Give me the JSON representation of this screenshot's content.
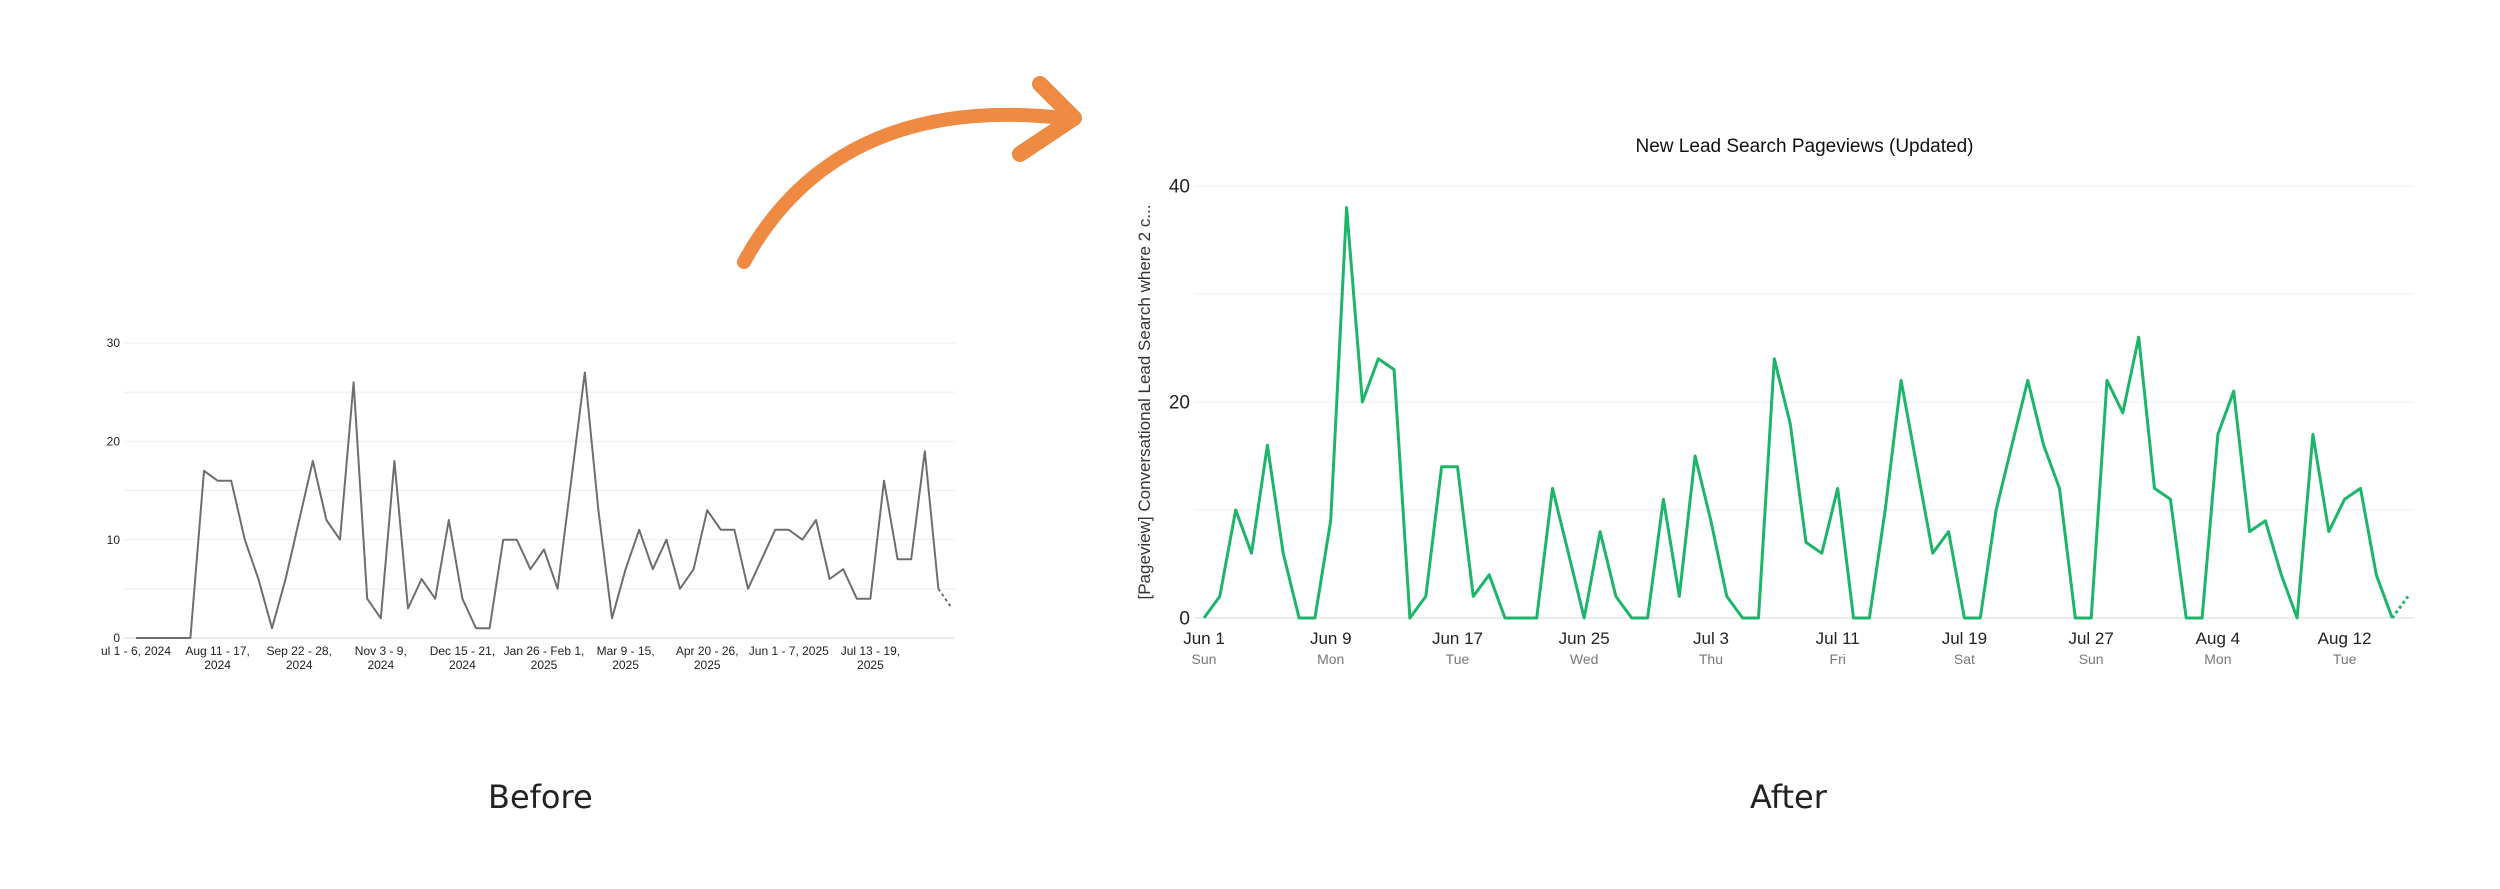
{
  "captions": {
    "before": "Before",
    "after": "After"
  },
  "colors": {
    "before_line": "#6e6e6e",
    "after_line": "#1db56a",
    "arrow": "#ef8a42",
    "grid": "#eeeeee"
  },
  "chart_data": [
    {
      "id": "before",
      "type": "line",
      "title": "",
      "xlabel": "",
      "ylabel": "",
      "ylim": [
        0,
        30
      ],
      "yticks": [
        0,
        10,
        20,
        30
      ],
      "grid": true,
      "x_tick_labels": [
        [
          "ul 1 - 6, 2024"
        ],
        [
          "Aug 11 - 17,",
          "2024"
        ],
        [
          "Sep 22 - 28,",
          "2024"
        ],
        [
          "Nov 3 - 9,",
          "2024"
        ],
        [
          "Dec 15 - 21,",
          "2024"
        ],
        [
          "Jan 26 - Feb 1,",
          "2025"
        ],
        [
          "Mar 9 - 15,",
          "2025"
        ],
        [
          "Apr 20 - 26,",
          "2025"
        ],
        [
          "Jun 1 - 7, 2025"
        ],
        [
          "Jul 13 - 19,",
          "2025"
        ]
      ],
      "x_tick_every": 6,
      "values": [
        0,
        0,
        0,
        0,
        0,
        17,
        16,
        16,
        10,
        6,
        1,
        6,
        12,
        18,
        12,
        10,
        26,
        4,
        2,
        18,
        3,
        6,
        4,
        12,
        4,
        1,
        1,
        10,
        10,
        7,
        9,
        5,
        16,
        27,
        13,
        2,
        7,
        11,
        7,
        10,
        5,
        7,
        13,
        11,
        11,
        5,
        8,
        11,
        11,
        10,
        12,
        6,
        7,
        4,
        4,
        16,
        8,
        8,
        19,
        5,
        3
      ],
      "dashed_last_segment": true
    },
    {
      "id": "after",
      "type": "line",
      "title": "New Lead Search Pageviews (Updated)",
      "xlabel": "",
      "ylabel": "[Pageview] Conversational Lead Search where 2 c...",
      "ylim": [
        0,
        40
      ],
      "yticks": [
        0,
        20,
        40
      ],
      "grid": true,
      "x_tick_labels": [
        [
          "Jun 1",
          "Sun"
        ],
        [
          "Jun 9",
          "Mon"
        ],
        [
          "Jun 17",
          "Tue"
        ],
        [
          "Jun 25",
          "Wed"
        ],
        [
          "Jul 3",
          "Thu"
        ],
        [
          "Jul 11",
          "Fri"
        ],
        [
          "Jul 19",
          "Sat"
        ],
        [
          "Jul 27",
          "Sun"
        ],
        [
          "Aug 4",
          "Mon"
        ],
        [
          "Aug 12",
          "Tue"
        ]
      ],
      "x_tick_every": 8,
      "values": [
        0,
        2,
        10,
        6,
        16,
        6,
        0,
        0,
        9,
        38,
        20,
        24,
        23,
        0,
        2,
        14,
        14,
        2,
        4,
        0,
        0,
        0,
        12,
        6,
        0,
        8,
        2,
        0,
        0,
        11,
        2,
        15,
        9,
        2,
        0,
        0,
        24,
        18,
        7,
        6,
        12,
        0,
        0,
        10,
        22,
        14,
        6,
        8,
        0,
        0,
        10,
        16,
        22,
        16,
        12,
        0,
        0,
        22,
        19,
        26,
        12,
        11,
        0,
        0,
        17,
        21,
        8,
        9,
        4,
        0,
        17,
        8,
        11,
        12,
        4,
        0,
        2
      ],
      "dashed_last_segment": true
    }
  ]
}
